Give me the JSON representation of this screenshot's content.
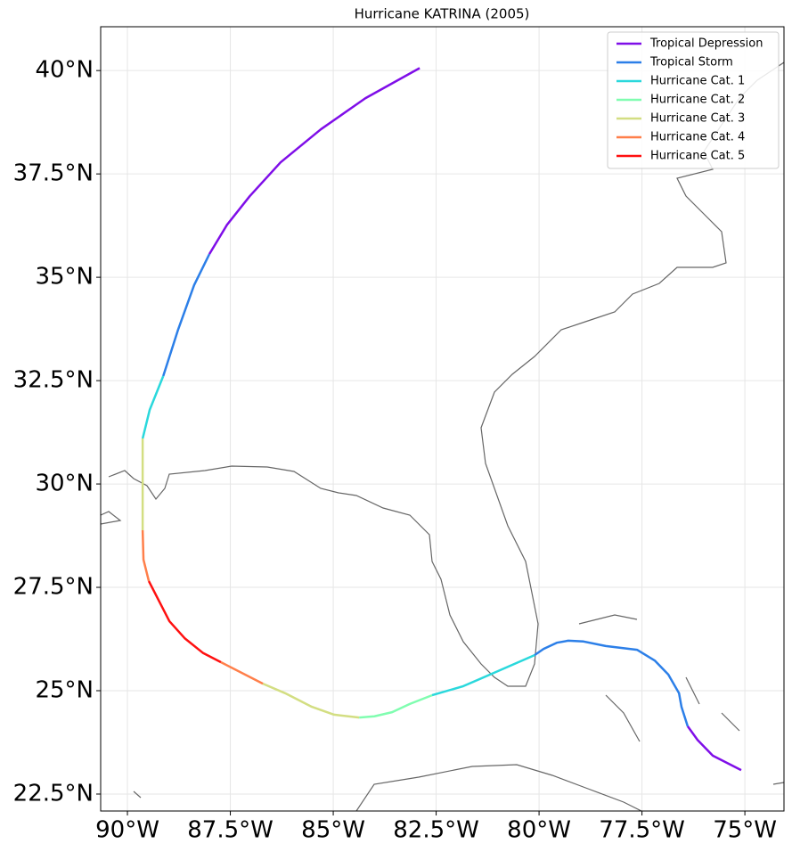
{
  "chart_data": {
    "type": "line",
    "title": "Hurricane KATRINA (2005)",
    "xlim": [
      -90.65,
      -74.05
    ],
    "ylim": [
      22.09,
      41.06
    ],
    "xticks": [
      {
        "value": -90,
        "label": "90°W"
      },
      {
        "value": -87.5,
        "label": "87.5°W"
      },
      {
        "value": -85,
        "label": "85°W"
      },
      {
        "value": -82.5,
        "label": "82.5°W"
      },
      {
        "value": -80,
        "label": "80°W"
      },
      {
        "value": -77.5,
        "label": "77.5°W"
      },
      {
        "value": -75,
        "label": "75°W"
      }
    ],
    "yticks": [
      {
        "value": 22.5,
        "label": "22.5°N"
      },
      {
        "value": 25,
        "label": "25°N"
      },
      {
        "value": 27.5,
        "label": "27.5°N"
      },
      {
        "value": 30,
        "label": "30°N"
      },
      {
        "value": 32.5,
        "label": "32.5°N"
      },
      {
        "value": 35,
        "label": "35°N"
      },
      {
        "value": 37.5,
        "label": "37.5°N"
      },
      {
        "value": 40,
        "label": "40°N"
      }
    ],
    "grid": true,
    "legend": "upper right",
    "series": [
      {
        "name": "Tropical Depression",
        "color": "#7f0ee8",
        "x": [
          -75.09,
          -75.78,
          -76.15,
          -76.39,
          null,
          -88.01,
          -87.58,
          -87.03,
          -86.28,
          -85.3,
          -84.22,
          -82.9
        ],
        "values": [
          23.08,
          23.43,
          23.81,
          24.14,
          null,
          35.56,
          36.27,
          36.96,
          37.78,
          38.58,
          39.33,
          40.06
        ]
      },
      {
        "name": "Tropical Storm",
        "color": "#2c7fe8",
        "x": [
          -76.39,
          -76.54,
          -76.6,
          -76.86,
          -77.19,
          -77.62,
          -78.38,
          -78.92,
          -79.29,
          -79.57,
          -79.89,
          -80.11,
          null,
          -89.13,
          -88.77,
          -88.38,
          -88.01
        ],
        "values": [
          24.14,
          24.61,
          24.94,
          25.39,
          25.73,
          25.99,
          26.08,
          26.19,
          26.21,
          26.16,
          26.01,
          25.86,
          null,
          32.61,
          33.73,
          34.81,
          35.56
        ]
      },
      {
        "name": "Hurricane Cat. 1",
        "color": "#2ad8dc",
        "x": [
          -80.11,
          -81.19,
          -81.84,
          -82.6,
          null,
          -89.63,
          -89.46,
          -89.13
        ],
        "values": [
          25.86,
          25.39,
          25.11,
          24.89,
          null,
          31.1,
          31.79,
          32.61
        ]
      },
      {
        "name": "Hurricane Cat. 2",
        "color": "#80fdb0",
        "x": [
          -82.6,
          -83.14,
          -83.57,
          -84.0,
          -84.37
        ],
        "values": [
          24.89,
          24.68,
          24.48,
          24.38,
          24.35
        ]
      },
      {
        "name": "Hurricane Cat. 3",
        "color": "#d3de82",
        "x": [
          -84.37,
          -84.98,
          -85.52,
          -86.17,
          -86.71,
          null,
          -89.63,
          -89.63
        ],
        "values": [
          24.35,
          24.42,
          24.61,
          24.94,
          25.17,
          null,
          28.88,
          31.1
        ]
      },
      {
        "name": "Hurricane Cat. 4",
        "color": "#ff7f4a",
        "x": [
          -86.71,
          -87.73,
          null,
          -89.48,
          -89.61,
          -89.63
        ],
        "values": [
          25.17,
          25.69,
          null,
          27.65,
          28.17,
          28.88
        ]
      },
      {
        "name": "Hurricane Cat. 5",
        "color": "#ff1010",
        "x": [
          -87.73,
          -88.16,
          -88.61,
          -88.98,
          -89.48
        ],
        "values": [
          25.69,
          25.91,
          26.27,
          26.68,
          27.65
        ]
      }
    ]
  }
}
